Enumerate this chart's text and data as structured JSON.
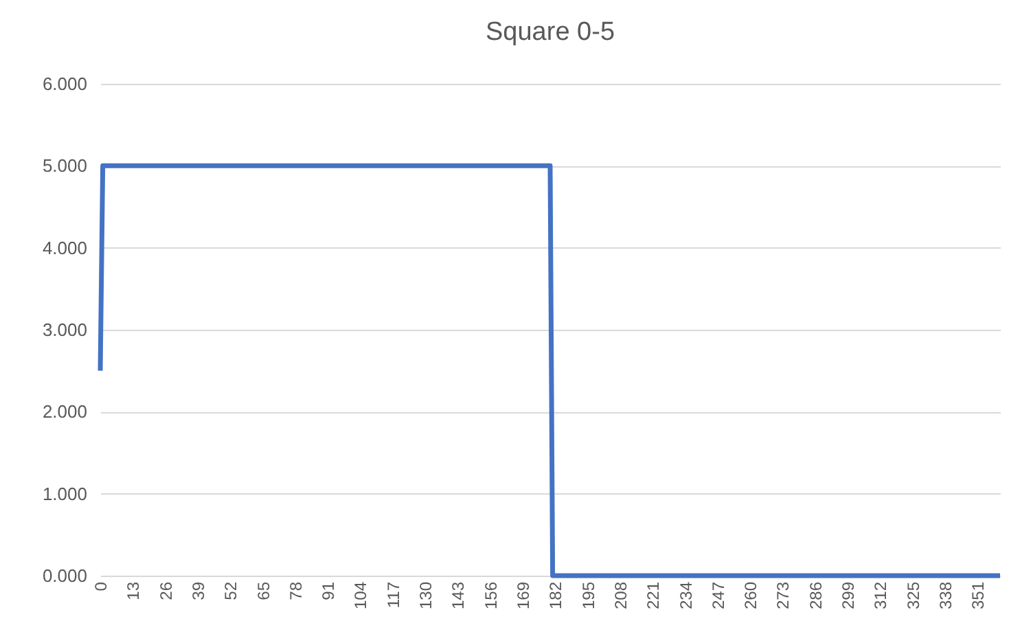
{
  "chart_data": {
    "type": "line",
    "title": "Square 0-5",
    "categories": [
      "0",
      null,
      null,
      null,
      null,
      null,
      null,
      null,
      null,
      null,
      null,
      null,
      null,
      "13",
      null,
      null,
      null,
      null,
      null,
      null,
      null,
      null,
      null,
      null,
      null,
      null,
      "26",
      null,
      null,
      null,
      null,
      null,
      null,
      null,
      null,
      null,
      null,
      null,
      null,
      "39",
      null,
      null,
      null,
      null,
      null,
      null,
      null,
      null,
      null,
      null,
      null,
      null,
      "52",
      null,
      null,
      null,
      null,
      null,
      null,
      null,
      null,
      null,
      null,
      null,
      null,
      "65",
      null,
      null,
      null,
      null,
      null,
      null,
      null,
      null,
      null,
      null,
      null,
      null,
      "78",
      null,
      null,
      null,
      null,
      null,
      null,
      null,
      null,
      null,
      null,
      null,
      null,
      "91",
      null,
      null,
      null,
      null,
      null,
      null,
      null,
      null,
      null,
      null,
      null,
      null,
      "104",
      null,
      null,
      null,
      null,
      null,
      null,
      null,
      null,
      null,
      null,
      null,
      null,
      "117",
      null,
      null,
      null,
      null,
      null,
      null,
      null,
      null,
      null,
      null,
      null,
      null,
      "130",
      null,
      null,
      null,
      null,
      null,
      null,
      null,
      null,
      null,
      null,
      null,
      null,
      "143",
      null,
      null,
      null,
      null,
      null,
      null,
      null,
      null,
      null,
      null,
      null,
      null,
      "156",
      null,
      null,
      null,
      null,
      null,
      null,
      null,
      null,
      null,
      null,
      null,
      null,
      "169",
      null,
      null,
      null,
      null,
      null,
      null,
      null,
      null,
      null,
      null,
      null,
      null,
      "182",
      null,
      null,
      null,
      null,
      null,
      null,
      null,
      null,
      null,
      null,
      null,
      null,
      "195",
      null,
      null,
      null,
      null,
      null,
      null,
      null,
      null,
      null,
      null,
      null,
      null,
      "208",
      null,
      null,
      null,
      null,
      null,
      null,
      null,
      null,
      null,
      null,
      null,
      null,
      "221",
      null,
      null,
      null,
      null,
      null,
      null,
      null,
      null,
      null,
      null,
      null,
      null,
      "234",
      null,
      null,
      null,
      null,
      null,
      null,
      null,
      null,
      null,
      null,
      null,
      null,
      "247",
      null,
      null,
      null,
      null,
      null,
      null,
      null,
      null,
      null,
      null,
      null,
      null,
      "260",
      null,
      null,
      null,
      null,
      null,
      null,
      null,
      null,
      null,
      null,
      null,
      null,
      "273",
      null,
      null,
      null,
      null,
      null,
      null,
      null,
      null,
      null,
      null,
      null,
      null,
      "286",
      null,
      null,
      null,
      null,
      null,
      null,
      null,
      null,
      null,
      null,
      null,
      null,
      "299",
      null,
      null,
      null,
      null,
      null,
      null,
      null,
      null,
      null,
      null,
      null,
      null,
      "312",
      null,
      null,
      null,
      null,
      null,
      null,
      null,
      null,
      null,
      null,
      null,
      null,
      "325",
      null,
      null,
      null,
      null,
      null,
      null,
      null,
      null,
      null,
      null,
      null,
      null,
      "338",
      null,
      null,
      null,
      null,
      null,
      null,
      null,
      null,
      null,
      null,
      null,
      null,
      "351",
      null,
      null,
      null,
      null,
      null,
      null,
      null,
      null,
      null
    ],
    "series": [
      {
        "color": "#4472c4",
        "values": [
          2.5,
          5,
          5,
          5,
          5,
          5,
          5,
          5,
          5,
          5,
          5,
          5,
          5,
          5,
          5,
          5,
          5,
          5,
          5,
          5,
          5,
          5,
          5,
          5,
          5,
          5,
          5,
          5,
          5,
          5,
          5,
          5,
          5,
          5,
          5,
          5,
          5,
          5,
          5,
          5,
          5,
          5,
          5,
          5,
          5,
          5,
          5,
          5,
          5,
          5,
          5,
          5,
          5,
          5,
          5,
          5,
          5,
          5,
          5,
          5,
          5,
          5,
          5,
          5,
          5,
          5,
          5,
          5,
          5,
          5,
          5,
          5,
          5,
          5,
          5,
          5,
          5,
          5,
          5,
          5,
          5,
          5,
          5,
          5,
          5,
          5,
          5,
          5,
          5,
          5,
          5,
          5,
          5,
          5,
          5,
          5,
          5,
          5,
          5,
          5,
          5,
          5,
          5,
          5,
          5,
          5,
          5,
          5,
          5,
          5,
          5,
          5,
          5,
          5,
          5,
          5,
          5,
          5,
          5,
          5,
          5,
          5,
          5,
          5,
          5,
          5,
          5,
          5,
          5,
          5,
          5,
          5,
          5,
          5,
          5,
          5,
          5,
          5,
          5,
          5,
          5,
          5,
          5,
          5,
          5,
          5,
          5,
          5,
          5,
          5,
          5,
          5,
          5,
          5,
          5,
          5,
          5,
          5,
          5,
          5,
          5,
          5,
          5,
          5,
          5,
          5,
          5,
          5,
          5,
          5,
          5,
          5,
          5,
          5,
          5,
          5,
          5,
          5,
          5,
          5,
          5,
          0,
          0,
          0,
          0,
          0,
          0,
          0,
          0,
          0,
          0,
          0,
          0,
          0,
          0,
          0,
          0,
          0,
          0,
          0,
          0,
          0,
          0,
          0,
          0,
          0,
          0,
          0,
          0,
          0,
          0,
          0,
          0,
          0,
          0,
          0,
          0,
          0,
          0,
          0,
          0,
          0,
          0,
          0,
          0,
          0,
          0,
          0,
          0,
          0,
          0,
          0,
          0,
          0,
          0,
          0,
          0,
          0,
          0,
          0,
          0,
          0,
          0,
          0,
          0,
          0,
          0,
          0,
          0,
          0,
          0,
          0,
          0,
          0,
          0,
          0,
          0,
          0,
          0,
          0,
          0,
          0,
          0,
          0,
          0,
          0,
          0,
          0,
          0,
          0,
          0,
          0,
          0,
          0,
          0,
          0,
          0,
          0,
          0,
          0,
          0,
          0,
          0,
          0,
          0,
          0,
          0,
          0,
          0,
          0,
          0,
          0,
          0,
          0,
          0,
          0,
          0,
          0,
          0,
          0,
          0,
          0,
          0,
          0,
          0,
          0,
          0,
          0,
          0,
          0,
          0,
          0,
          0,
          0,
          0,
          0,
          0,
          0,
          0,
          0,
          0,
          0,
          0,
          0,
          0,
          0,
          0,
          0,
          0,
          0,
          0,
          0,
          0,
          0,
          0,
          0,
          0,
          0,
          0,
          0,
          0,
          0,
          0,
          0,
          0,
          0,
          0,
          0,
          0,
          0,
          0,
          0,
          0,
          0,
          0,
          0,
          0,
          0,
          0,
          0,
          0
        ]
      }
    ],
    "ylim": [
      0,
      6
    ],
    "yticks": [
      {
        "value": 0,
        "label": "0.000"
      },
      {
        "value": 1,
        "label": "1.000"
      },
      {
        "value": 2,
        "label": "2.000"
      },
      {
        "value": 3,
        "label": "3.000"
      },
      {
        "value": 4,
        "label": "4.000"
      },
      {
        "value": 5,
        "label": "5.000"
      },
      {
        "value": 6,
        "label": "6.000"
      }
    ],
    "grid": "y",
    "legend": false,
    "marker": "none",
    "line_style": "solid"
  }
}
